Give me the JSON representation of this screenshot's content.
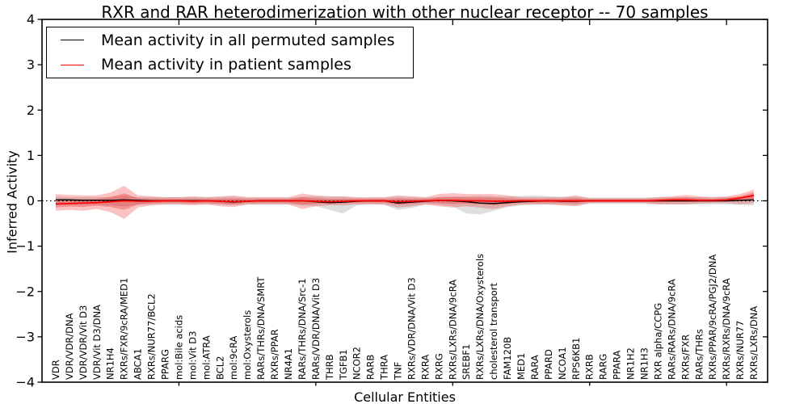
{
  "title": "RXR and RAR heterodimerization with other nuclear receptor -- 70 samples",
  "legend": {
    "items": [
      {
        "label": "Mean activity in all permuted samples",
        "color": "#000000"
      },
      {
        "label": "Mean activity in patient samples",
        "color": "#ff0000"
      }
    ]
  },
  "chart_data": {
    "type": "line",
    "title": "RXR and RAR heterodimerization with other nuclear receptor -- 70 samples",
    "xlabel": "Cellular Entities",
    "ylabel": "Inferred Activity",
    "ylim": [
      -4,
      4
    ],
    "y_ticks": [
      4,
      3,
      2,
      1,
      0,
      -1,
      -2,
      -3,
      -4
    ],
    "x_major_ticks": [
      10,
      20,
      30,
      40,
      50
    ],
    "grid": false,
    "legend_position": "upper left",
    "zero_line": {
      "y": 0,
      "style": "dotted",
      "color": "#000000"
    },
    "categories": [
      "VDR",
      "VDR/VDR/DNA",
      "VDR/VDR/Vit D3",
      "VDR/Vit D3/DNA",
      "NR1H4",
      "RXRs/FXR/9cRA/MED1",
      "ABCA1",
      "RXRs/NUR77/BCL2",
      "PPARG",
      "mol:Bile acids",
      "mol:Vit D3",
      "mol:ATRA",
      "BCL2",
      "mol:9cRA",
      "mol:Oxysterols",
      "RARs/THRs/DNA/SMRT",
      "RXRs/PPAR",
      "NR4A1",
      "RARs/THRs/DNA/Src-1",
      "RARs/VDR/DNA/Vit D3",
      "THRB",
      "TGFB1",
      "NCOR2",
      "RARB",
      "THRA",
      "TNF",
      "RXRs/VDR/DNA/Vit D3",
      "RXRA",
      "RXRG",
      "RXRs/LXRs/DNA/9cRA",
      "SREBF1",
      "RXRs/LXRs/DNA/Oxysterols",
      "cholesterol transport",
      "FAM120B",
      "MED1",
      "RARA",
      "PPARD",
      "NCOA1",
      "RPS6KB1",
      "RXRB",
      "RARG",
      "PPARA",
      "NR1H2",
      "NR1H3",
      "RXR alpha/CCPG",
      "RARs/RARs/DNA/9cRA",
      "RXRs/FXR",
      "RARs/THRs",
      "RXRs/PPAR/9cRA/PGJ2/DNA",
      "RXRs/RXRs/DNA/9cRA",
      "RXRs/NUR77",
      "RXRs/LXRs/DNA"
    ],
    "series": [
      {
        "name": "Mean activity in all permuted samples",
        "color": "#000000",
        "values": [
          0.02,
          0.02,
          0.01,
          0.01,
          0.01,
          0.02,
          0.01,
          0.0,
          0.0,
          0.0,
          0.0,
          0.0,
          -0.01,
          -0.03,
          -0.01,
          0.0,
          0.0,
          0.0,
          0.0,
          -0.02,
          -0.04,
          -0.03,
          -0.01,
          0.0,
          0.0,
          -0.05,
          -0.03,
          -0.01,
          0.01,
          0.0,
          -0.02,
          -0.05,
          -0.06,
          -0.04,
          -0.02,
          -0.01,
          0.0,
          -0.01,
          -0.01,
          0.0,
          0.0,
          0.0,
          0.0,
          0.0,
          0.0,
          0.0,
          0.0,
          0.0,
          0.0,
          0.0,
          0.01,
          0.02
        ]
      },
      {
        "name": "Mean activity in patient samples",
        "color": "#ff0000",
        "values": [
          -0.07,
          -0.06,
          -0.05,
          -0.04,
          -0.02,
          0.0,
          -0.01,
          -0.01,
          0.0,
          0.0,
          -0.01,
          0.0,
          -0.01,
          -0.02,
          -0.01,
          0.0,
          0.0,
          0.0,
          0.0,
          -0.01,
          -0.02,
          -0.01,
          0.0,
          0.0,
          0.0,
          -0.02,
          -0.01,
          0.0,
          0.01,
          0.01,
          0.0,
          0.0,
          -0.01,
          -0.01,
          0.0,
          0.0,
          0.0,
          0.0,
          0.0,
          0.0,
          0.0,
          0.0,
          0.0,
          0.0,
          0.01,
          0.02,
          0.02,
          0.01,
          0.01,
          0.02,
          0.06,
          0.12
        ]
      }
    ],
    "bands": [
      {
        "name": "permuted-std-band",
        "fill": "rgba(0,0,0,0.13)",
        "upper": [
          0.09,
          0.08,
          0.08,
          0.08,
          0.09,
          0.12,
          0.08,
          0.08,
          0.08,
          0.08,
          0.08,
          0.08,
          0.08,
          0.09,
          0.07,
          0.07,
          0.07,
          0.07,
          0.09,
          0.1,
          0.09,
          0.09,
          0.07,
          0.07,
          0.07,
          0.09,
          0.08,
          0.07,
          0.08,
          0.09,
          0.1,
          0.11,
          0.1,
          0.09,
          0.11,
          0.12,
          0.1,
          0.09,
          0.09,
          0.07,
          0.07,
          0.07,
          0.07,
          0.07,
          0.08,
          0.08,
          0.08,
          0.08,
          0.08,
          0.08,
          0.09,
          0.1
        ],
        "lower": [
          -0.1,
          -0.09,
          -0.09,
          -0.09,
          -0.1,
          -0.13,
          -0.09,
          -0.08,
          -0.08,
          -0.08,
          -0.08,
          -0.08,
          -0.08,
          -0.1,
          -0.08,
          -0.08,
          -0.08,
          -0.08,
          -0.1,
          -0.12,
          -0.2,
          -0.28,
          -0.1,
          -0.08,
          -0.09,
          -0.2,
          -0.16,
          -0.08,
          -0.09,
          -0.12,
          -0.28,
          -0.3,
          -0.22,
          -0.14,
          -0.1,
          -0.09,
          -0.08,
          -0.09,
          -0.1,
          -0.07,
          -0.07,
          -0.07,
          -0.07,
          -0.07,
          -0.08,
          -0.08,
          -0.08,
          -0.08,
          -0.08,
          -0.08,
          -0.09,
          -0.1
        ]
      },
      {
        "name": "patient-std-band-outer",
        "fill": "rgba(235,30,30,0.27)",
        "upper": [
          0.15,
          0.13,
          0.12,
          0.12,
          0.18,
          0.33,
          0.12,
          0.1,
          0.08,
          0.08,
          0.1,
          0.08,
          0.1,
          0.12,
          0.08,
          0.08,
          0.08,
          0.08,
          0.16,
          0.12,
          0.1,
          0.1,
          0.08,
          0.08,
          0.08,
          0.12,
          0.1,
          0.08,
          0.15,
          0.17,
          0.15,
          0.15,
          0.15,
          0.12,
          0.08,
          0.08,
          0.08,
          0.08,
          0.12,
          0.06,
          0.06,
          0.06,
          0.06,
          0.06,
          0.08,
          0.1,
          0.13,
          0.1,
          0.08,
          0.1,
          0.15,
          0.25
        ],
        "lower": [
          -0.22,
          -0.2,
          -0.22,
          -0.18,
          -0.25,
          -0.4,
          -0.15,
          -0.1,
          -0.08,
          -0.08,
          -0.1,
          -0.08,
          -0.12,
          -0.14,
          -0.08,
          -0.08,
          -0.08,
          -0.08,
          -0.18,
          -0.12,
          -0.1,
          -0.1,
          -0.08,
          -0.08,
          -0.08,
          -0.15,
          -0.12,
          -0.08,
          -0.12,
          -0.15,
          -0.12,
          -0.15,
          -0.18,
          -0.12,
          -0.08,
          -0.08,
          -0.08,
          -0.1,
          -0.12,
          -0.05,
          -0.05,
          -0.05,
          -0.05,
          -0.05,
          -0.08,
          -0.08,
          -0.08,
          -0.06,
          -0.05,
          -0.05,
          -0.08,
          -0.05
        ]
      },
      {
        "name": "patient-std-band-inner",
        "fill": "rgba(235,30,30,0.3)",
        "upper": [
          0.04,
          0.035,
          0.035,
          0.04,
          0.08,
          0.165,
          0.055,
          0.045,
          0.04,
          0.04,
          0.045,
          0.04,
          0.045,
          0.05,
          0.035,
          0.04,
          0.04,
          0.04,
          0.08,
          0.055,
          0.04,
          0.045,
          0.04,
          0.04,
          0.04,
          0.05,
          0.045,
          0.04,
          0.08,
          0.09,
          0.075,
          0.075,
          0.07,
          0.055,
          0.04,
          0.04,
          0.04,
          0.04,
          0.06,
          0.03,
          0.03,
          0.03,
          0.03,
          0.03,
          0.045,
          0.06,
          0.075,
          0.055,
          0.045,
          0.06,
          0.105,
          0.185
        ],
        "lower": [
          -0.145,
          -0.13,
          -0.135,
          -0.11,
          -0.135,
          -0.2,
          -0.08,
          -0.055,
          -0.04,
          -0.04,
          -0.055,
          -0.04,
          -0.065,
          -0.08,
          -0.045,
          -0.04,
          -0.04,
          -0.04,
          -0.09,
          -0.065,
          -0.06,
          -0.055,
          -0.04,
          -0.04,
          -0.04,
          -0.085,
          -0.065,
          -0.04,
          -0.055,
          -0.07,
          -0.06,
          -0.075,
          -0.095,
          -0.065,
          -0.04,
          -0.04,
          -0.04,
          -0.05,
          -0.06,
          -0.025,
          -0.025,
          -0.025,
          -0.025,
          -0.025,
          -0.035,
          -0.03,
          -0.03,
          -0.025,
          -0.02,
          -0.015,
          -0.01,
          0.035
        ]
      }
    ]
  }
}
